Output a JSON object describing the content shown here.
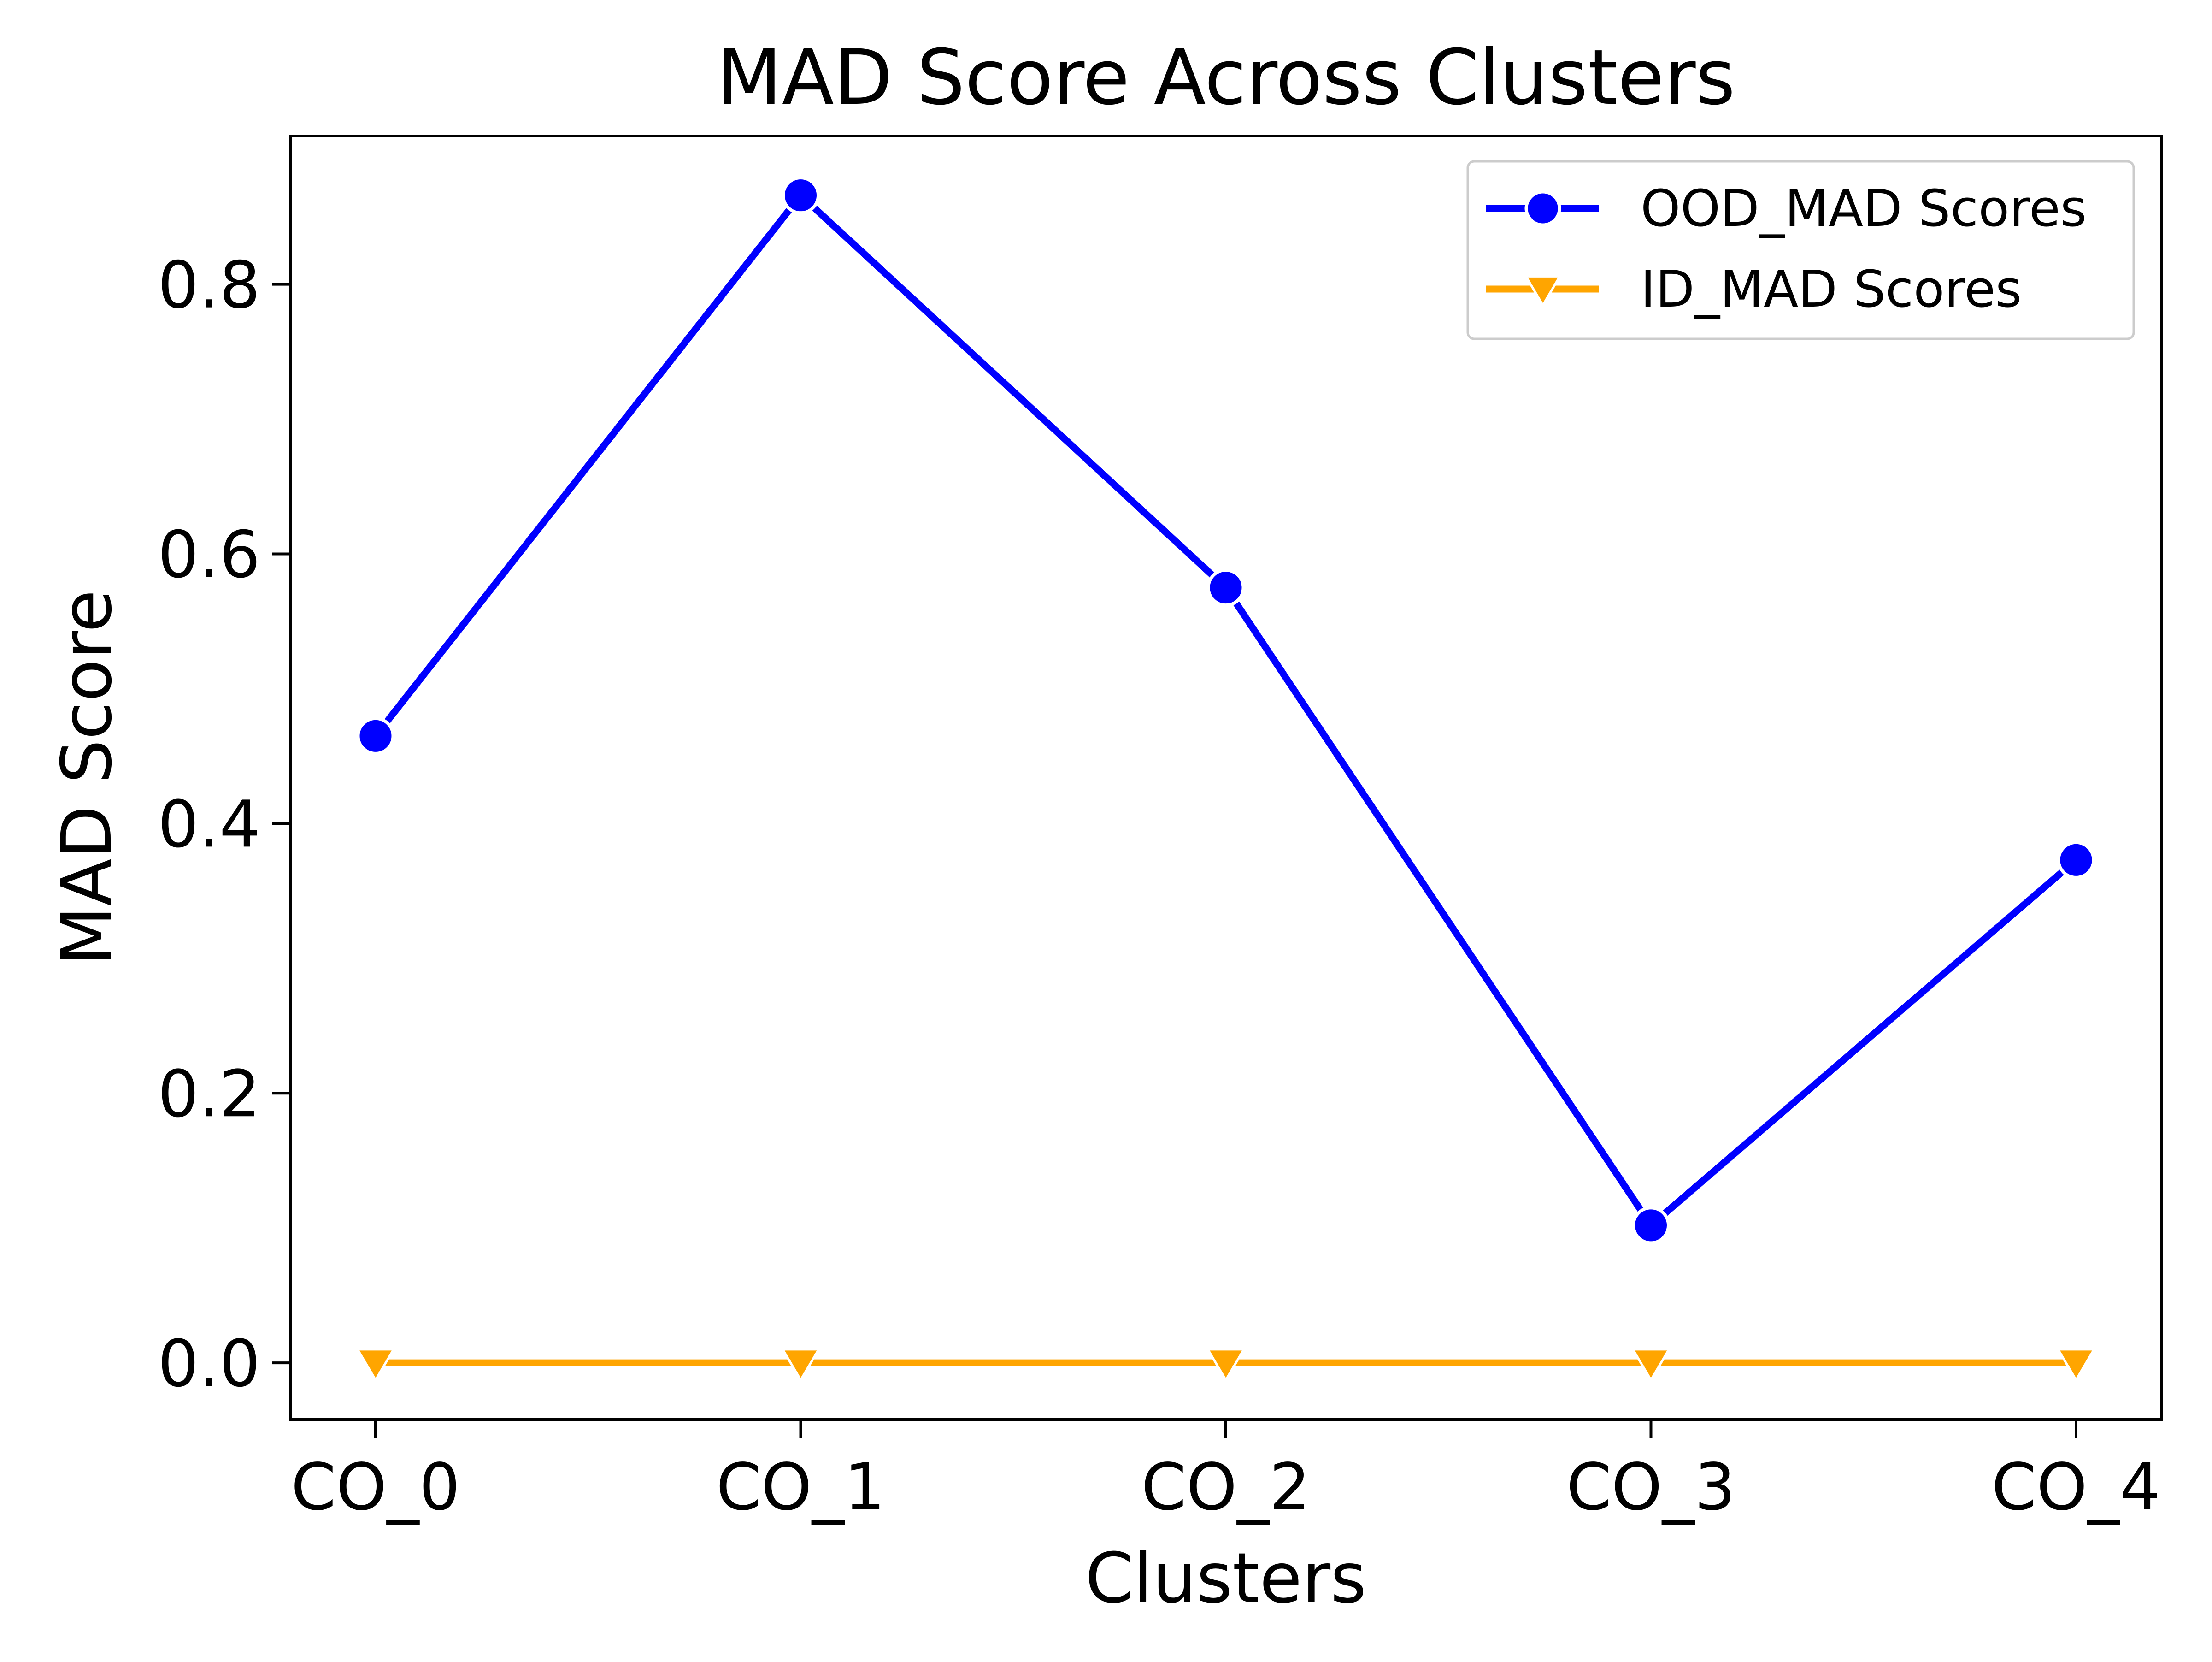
{
  "chart_data": {
    "type": "line",
    "title": "MAD Score Across Clusters",
    "xlabel": "Clusters",
    "ylabel": "MAD Score",
    "categories": [
      "CO_0",
      "CO_1",
      "CO_2",
      "CO_3",
      "CO_4"
    ],
    "ylim": [
      -0.042,
      0.91
    ],
    "yticks": [
      0.0,
      0.2,
      0.4,
      0.6,
      0.8
    ],
    "ytick_labels": [
      "0.0",
      "0.2",
      "0.4",
      "0.6",
      "0.8"
    ],
    "grid": false,
    "legend_position": "top-right",
    "series": [
      {
        "name": "OOD_MAD Scores",
        "values": [
          0.465,
          0.866,
          0.575,
          0.102,
          0.373
        ],
        "color": "#0000ff",
        "marker": "circle"
      },
      {
        "name": "ID_MAD Scores",
        "values": [
          0.0,
          0.0,
          0.0,
          0.0,
          0.0
        ],
        "color": "#ffa500",
        "marker": "triangle-down"
      }
    ]
  }
}
